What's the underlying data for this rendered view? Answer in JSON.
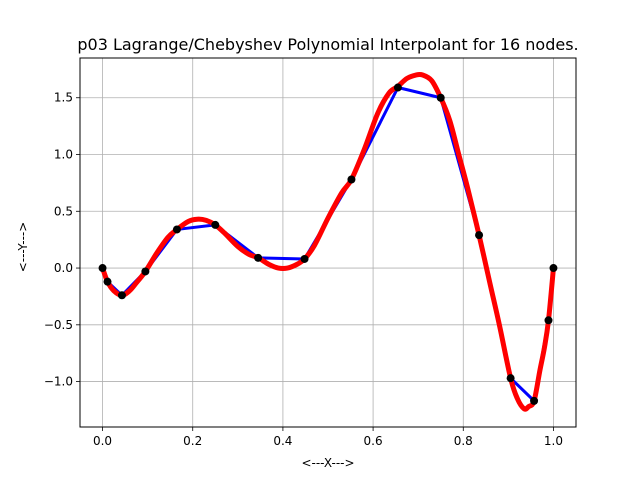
{
  "chart_data": {
    "type": "line",
    "title": "p03 Lagrange/Chebyshev Polynomial Interpolant for 16 nodes.",
    "xlabel": "<---X--->",
    "ylabel": "<---Y--->",
    "xlim": [
      -0.05,
      1.05
    ],
    "ylim": [
      -1.4,
      1.85
    ],
    "grid": true,
    "x_ticks": [
      0.0,
      0.2,
      0.4,
      0.6,
      0.8,
      1.0
    ],
    "x_tick_labels": [
      "0.0",
      "0.2",
      "0.4",
      "0.6",
      "0.8",
      "1.0"
    ],
    "y_ticks": [
      -1.0,
      -0.5,
      0.0,
      0.5,
      1.0,
      1.5
    ],
    "y_tick_labels": [
      "−1.0",
      "−0.5",
      "0.0",
      "0.5",
      "1.0",
      "1.5"
    ],
    "series": [
      {
        "color": "#0000ff",
        "style": "line",
        "x": [
          0.0,
          0.011,
          0.043,
          0.095,
          0.165,
          0.25,
          0.345,
          0.448,
          0.552,
          0.655,
          0.75,
          0.835,
          0.905,
          0.957,
          0.989,
          1.0
        ],
        "y": [
          0.0,
          -0.12,
          -0.24,
          -0.03,
          0.34,
          0.38,
          0.09,
          0.08,
          0.78,
          1.59,
          1.5,
          0.29,
          -0.97,
          -1.17,
          -0.46,
          0.0
        ]
      },
      {
        "color": "#ff0000",
        "style": "line",
        "x": [
          0.0,
          0.011,
          0.025,
          0.043,
          0.06,
          0.075,
          0.095,
          0.12,
          0.145,
          0.165,
          0.19,
          0.21,
          0.23,
          0.25,
          0.27,
          0.3,
          0.325,
          0.345,
          0.37,
          0.39,
          0.41,
          0.43,
          0.448,
          0.47,
          0.5,
          0.53,
          0.552,
          0.58,
          0.61,
          0.635,
          0.655,
          0.675,
          0.695,
          0.71,
          0.73,
          0.75,
          0.77,
          0.79,
          0.81,
          0.835,
          0.86,
          0.88,
          0.905,
          0.92,
          0.935,
          0.945,
          0.957,
          0.97,
          0.98,
          0.989,
          1.0
        ],
        "y": [
          0.0,
          -0.12,
          -0.2,
          -0.24,
          -0.2,
          -0.13,
          -0.03,
          0.13,
          0.27,
          0.34,
          0.41,
          0.43,
          0.42,
          0.38,
          0.31,
          0.19,
          0.12,
          0.09,
          0.03,
          0.0,
          0.0,
          0.03,
          0.08,
          0.2,
          0.44,
          0.66,
          0.78,
          1.04,
          1.36,
          1.54,
          1.6,
          1.67,
          1.7,
          1.7,
          1.65,
          1.5,
          1.3,
          1.0,
          0.7,
          0.29,
          -0.15,
          -0.5,
          -0.97,
          -1.15,
          -1.24,
          -1.22,
          -1.17,
          -0.9,
          -0.7,
          -0.46,
          0.0
        ]
      },
      {
        "color": "#000000",
        "style": "markers",
        "x": [
          0.0,
          0.011,
          0.043,
          0.095,
          0.165,
          0.25,
          0.345,
          0.448,
          0.552,
          0.655,
          0.75,
          0.835,
          0.905,
          0.957,
          0.989,
          1.0
        ],
        "y": [
          0.0,
          -0.12,
          -0.24,
          -0.03,
          0.34,
          0.38,
          0.09,
          0.08,
          0.78,
          1.59,
          1.5,
          0.29,
          -0.97,
          -1.17,
          -0.46,
          0.0
        ]
      }
    ]
  }
}
